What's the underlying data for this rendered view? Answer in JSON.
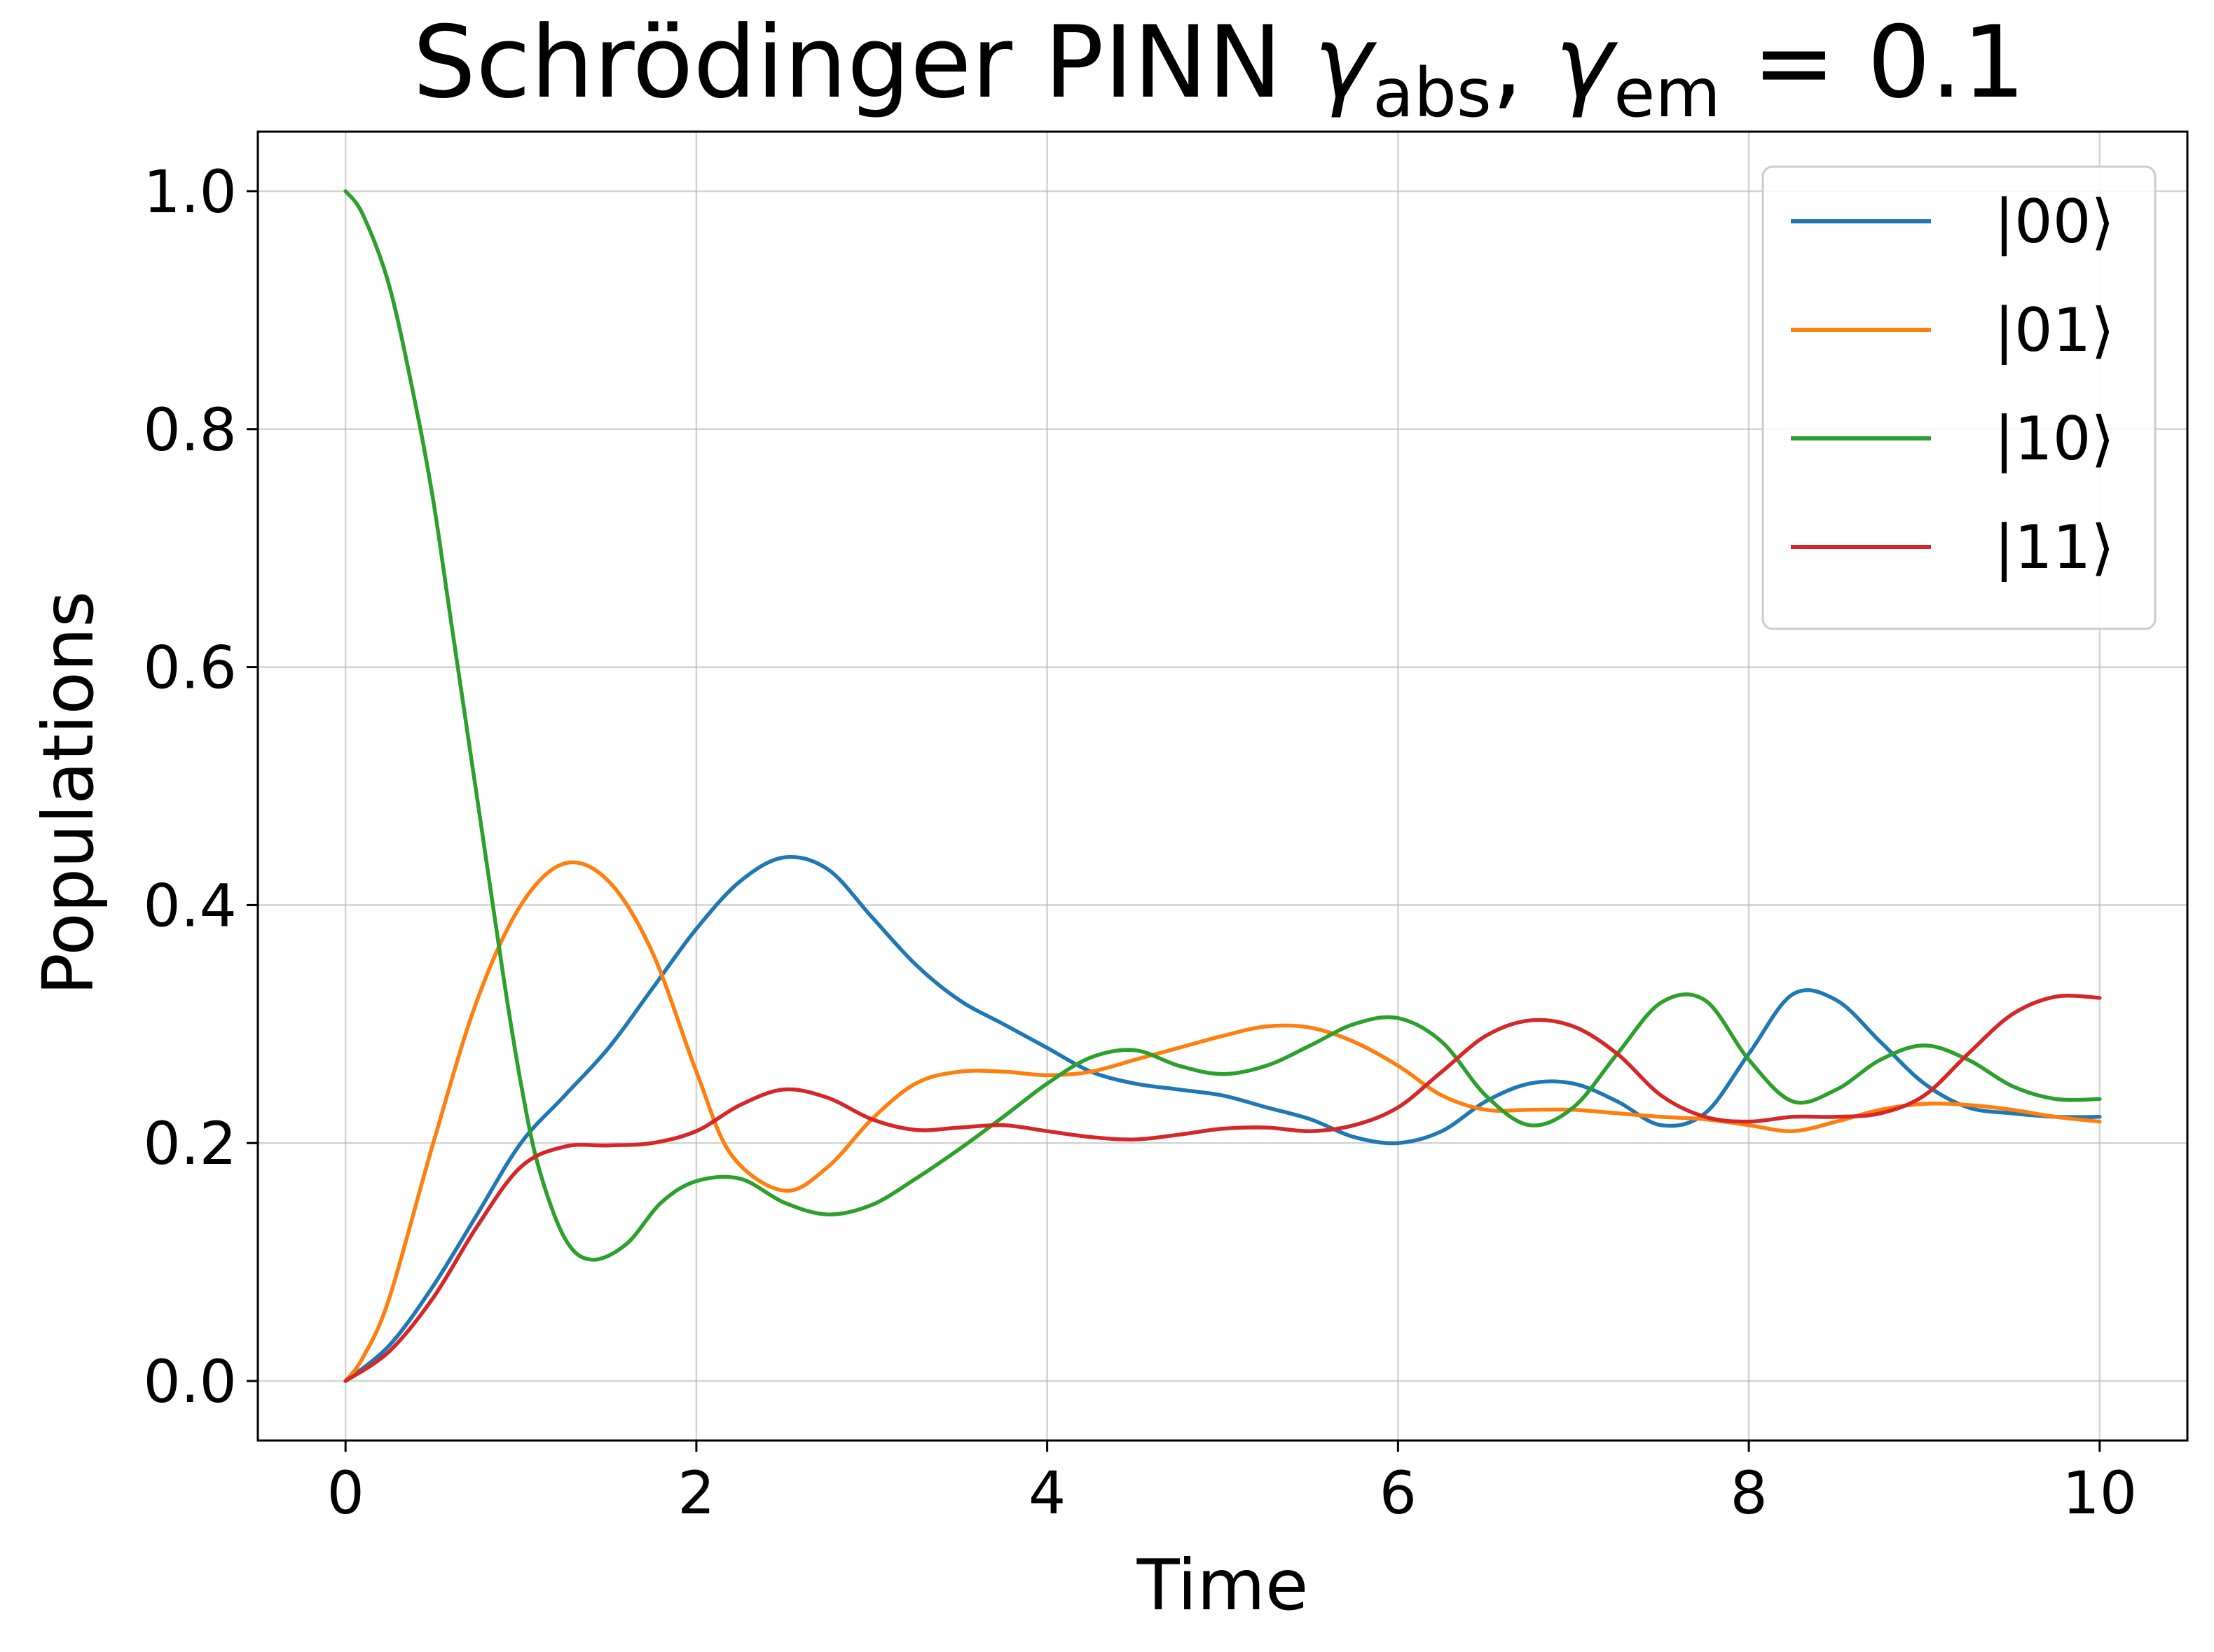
{
  "chart_data": {
    "type": "line",
    "title": {
      "main": "Schrödinger PINN ",
      "gamma1": "γ",
      "sub1": "abs",
      "comma": ", ",
      "gamma2": "γ",
      "sub2": "em",
      "tail": " = 0.1"
    },
    "xlabel": "Time",
    "ylabel": "Populations",
    "xlim": [
      -0.5,
      10.5
    ],
    "ylim": [
      -0.05,
      1.05
    ],
    "grid": true,
    "legend_position": "top-right",
    "x_ticks": [
      {
        "value": 0,
        "label": "0"
      },
      {
        "value": 2,
        "label": "2"
      },
      {
        "value": 4,
        "label": "4"
      },
      {
        "value": 6,
        "label": "6"
      },
      {
        "value": 8,
        "label": "8"
      },
      {
        "value": 10,
        "label": "10"
      }
    ],
    "y_ticks": [
      {
        "value": 0.0,
        "label": "0.0"
      },
      {
        "value": 0.2,
        "label": "0.2"
      },
      {
        "value": 0.4,
        "label": "0.4"
      },
      {
        "value": 0.6,
        "label": "0.6"
      },
      {
        "value": 0.8,
        "label": "0.8"
      },
      {
        "value": 1.0,
        "label": "1.0"
      }
    ],
    "series": [
      {
        "name": "|00⟩",
        "color": "#1f77b4",
        "points": [
          [
            0,
            0
          ],
          [
            0.25,
            0.03
          ],
          [
            0.5,
            0.08
          ],
          [
            0.75,
            0.14
          ],
          [
            1.0,
            0.2
          ],
          [
            1.25,
            0.24
          ],
          [
            1.5,
            0.28
          ],
          [
            1.75,
            0.33
          ],
          [
            2.0,
            0.38
          ],
          [
            2.25,
            0.42
          ],
          [
            2.5,
            0.44
          ],
          [
            2.75,
            0.43
          ],
          [
            3.0,
            0.39
          ],
          [
            3.25,
            0.35
          ],
          [
            3.5,
            0.32
          ],
          [
            3.75,
            0.3
          ],
          [
            4.0,
            0.28
          ],
          [
            4.25,
            0.26
          ],
          [
            4.5,
            0.25
          ],
          [
            4.75,
            0.245
          ],
          [
            5.0,
            0.24
          ],
          [
            5.25,
            0.23
          ],
          [
            5.5,
            0.22
          ],
          [
            5.75,
            0.205
          ],
          [
            6.0,
            0.2
          ],
          [
            6.25,
            0.21
          ],
          [
            6.5,
            0.235
          ],
          [
            6.75,
            0.25
          ],
          [
            7.0,
            0.25
          ],
          [
            7.25,
            0.235
          ],
          [
            7.5,
            0.215
          ],
          [
            7.75,
            0.225
          ],
          [
            8.0,
            0.275
          ],
          [
            8.25,
            0.325
          ],
          [
            8.5,
            0.32
          ],
          [
            8.75,
            0.285
          ],
          [
            9.0,
            0.25
          ],
          [
            9.25,
            0.23
          ],
          [
            9.5,
            0.225
          ],
          [
            9.75,
            0.222
          ],
          [
            10.0,
            0.222
          ]
        ]
      },
      {
        "name": "|01⟩",
        "color": "#ff7f0e",
        "points": [
          [
            0,
            0
          ],
          [
            0.1,
            0.02
          ],
          [
            0.25,
            0.07
          ],
          [
            0.5,
            0.2
          ],
          [
            0.75,
            0.32
          ],
          [
            1.0,
            0.4
          ],
          [
            1.25,
            0.435
          ],
          [
            1.5,
            0.42
          ],
          [
            1.75,
            0.36
          ],
          [
            2.0,
            0.26
          ],
          [
            2.2,
            0.19
          ],
          [
            2.5,
            0.16
          ],
          [
            2.75,
            0.18
          ],
          [
            3.0,
            0.22
          ],
          [
            3.25,
            0.25
          ],
          [
            3.5,
            0.26
          ],
          [
            3.75,
            0.26
          ],
          [
            4.0,
            0.257
          ],
          [
            4.25,
            0.26
          ],
          [
            4.5,
            0.27
          ],
          [
            4.75,
            0.28
          ],
          [
            5.0,
            0.29
          ],
          [
            5.25,
            0.298
          ],
          [
            5.5,
            0.297
          ],
          [
            5.75,
            0.285
          ],
          [
            6.0,
            0.265
          ],
          [
            6.25,
            0.24
          ],
          [
            6.5,
            0.228
          ],
          [
            6.75,
            0.228
          ],
          [
            7.0,
            0.228
          ],
          [
            7.25,
            0.225
          ],
          [
            7.5,
            0.222
          ],
          [
            7.75,
            0.22
          ],
          [
            8.0,
            0.215
          ],
          [
            8.25,
            0.21
          ],
          [
            8.5,
            0.218
          ],
          [
            8.75,
            0.228
          ],
          [
            9.0,
            0.233
          ],
          [
            9.25,
            0.232
          ],
          [
            9.5,
            0.228
          ],
          [
            9.75,
            0.222
          ],
          [
            10.0,
            0.218
          ]
        ]
      },
      {
        "name": "|10⟩",
        "color": "#2ca02c",
        "points": [
          [
            0,
            1.0
          ],
          [
            0.1,
            0.98
          ],
          [
            0.25,
            0.92
          ],
          [
            0.4,
            0.82
          ],
          [
            0.5,
            0.74
          ],
          [
            0.6,
            0.64
          ],
          [
            0.75,
            0.49
          ],
          [
            0.9,
            0.34
          ],
          [
            1.0,
            0.25
          ],
          [
            1.1,
            0.18
          ],
          [
            1.25,
            0.12
          ],
          [
            1.4,
            0.102
          ],
          [
            1.6,
            0.115
          ],
          [
            1.8,
            0.15
          ],
          [
            2.0,
            0.168
          ],
          [
            2.25,
            0.17
          ],
          [
            2.5,
            0.15
          ],
          [
            2.75,
            0.14
          ],
          [
            3.0,
            0.148
          ],
          [
            3.25,
            0.17
          ],
          [
            3.5,
            0.195
          ],
          [
            3.75,
            0.222
          ],
          [
            4.0,
            0.25
          ],
          [
            4.25,
            0.272
          ],
          [
            4.5,
            0.278
          ],
          [
            4.75,
            0.265
          ],
          [
            5.0,
            0.258
          ],
          [
            5.25,
            0.265
          ],
          [
            5.5,
            0.282
          ],
          [
            5.75,
            0.3
          ],
          [
            6.0,
            0.305
          ],
          [
            6.25,
            0.285
          ],
          [
            6.5,
            0.24
          ],
          [
            6.75,
            0.215
          ],
          [
            7.0,
            0.23
          ],
          [
            7.25,
            0.275
          ],
          [
            7.5,
            0.318
          ],
          [
            7.75,
            0.32
          ],
          [
            8.0,
            0.27
          ],
          [
            8.25,
            0.235
          ],
          [
            8.5,
            0.245
          ],
          [
            8.75,
            0.27
          ],
          [
            9.0,
            0.282
          ],
          [
            9.25,
            0.27
          ],
          [
            9.5,
            0.248
          ],
          [
            9.75,
            0.237
          ],
          [
            10.0,
            0.237
          ]
        ]
      },
      {
        "name": "|11⟩",
        "color": "#d62728",
        "points": [
          [
            0,
            0
          ],
          [
            0.25,
            0.025
          ],
          [
            0.5,
            0.07
          ],
          [
            0.75,
            0.13
          ],
          [
            1.0,
            0.18
          ],
          [
            1.25,
            0.197
          ],
          [
            1.5,
            0.198
          ],
          [
            1.75,
            0.2
          ],
          [
            2.0,
            0.21
          ],
          [
            2.25,
            0.232
          ],
          [
            2.5,
            0.245
          ],
          [
            2.75,
            0.238
          ],
          [
            3.0,
            0.22
          ],
          [
            3.25,
            0.211
          ],
          [
            3.5,
            0.213
          ],
          [
            3.75,
            0.215
          ],
          [
            4.0,
            0.21
          ],
          [
            4.25,
            0.205
          ],
          [
            4.5,
            0.203
          ],
          [
            4.75,
            0.207
          ],
          [
            5.0,
            0.212
          ],
          [
            5.25,
            0.213
          ],
          [
            5.5,
            0.21
          ],
          [
            5.75,
            0.215
          ],
          [
            6.0,
            0.23
          ],
          [
            6.25,
            0.26
          ],
          [
            6.5,
            0.29
          ],
          [
            6.75,
            0.303
          ],
          [
            7.0,
            0.298
          ],
          [
            7.25,
            0.275
          ],
          [
            7.5,
            0.24
          ],
          [
            7.75,
            0.222
          ],
          [
            8.0,
            0.218
          ],
          [
            8.25,
            0.222
          ],
          [
            8.5,
            0.222
          ],
          [
            8.75,
            0.225
          ],
          [
            9.0,
            0.24
          ],
          [
            9.25,
            0.275
          ],
          [
            9.5,
            0.308
          ],
          [
            9.75,
            0.323
          ],
          [
            10.0,
            0.322
          ]
        ]
      }
    ]
  }
}
